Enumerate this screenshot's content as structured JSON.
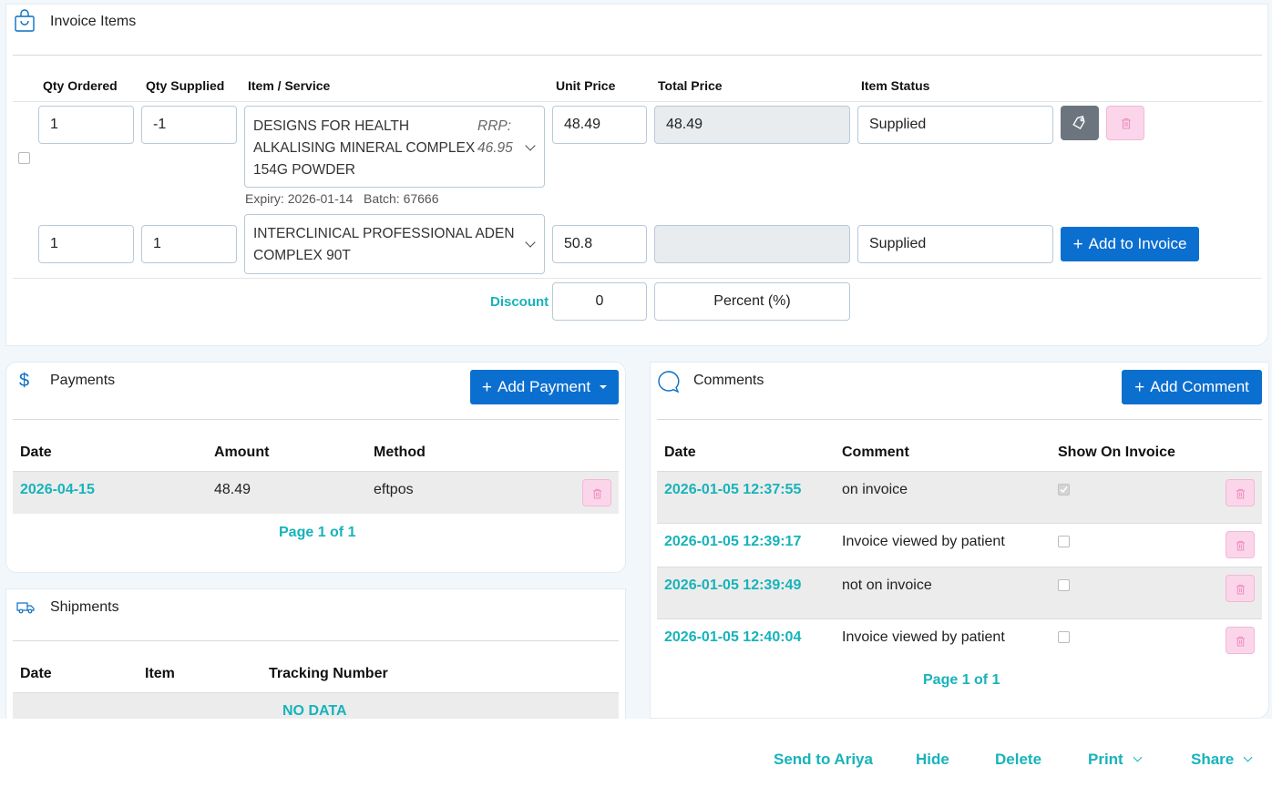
{
  "invoice_items": {
    "title": "Invoice Items",
    "headers": [
      "Qty Ordered",
      "Qty Supplied",
      "Item / Service",
      "Unit Price",
      "Total Price",
      "Item Status"
    ],
    "rows": [
      {
        "qty_ordered": "1",
        "qty_supplied": "-1",
        "item": "DESIGNS FOR HEALTH ALKALISING MINERAL COMPLEX 154G POWDER",
        "item_line1": "DESIGNS FOR HEALTH",
        "item_line2": "ALKALISING MINERAL COMPLEX",
        "item_line3": "154G POWDER",
        "rrp_label": "RRP:",
        "rrp_value": "46.95",
        "unit_price": "48.49",
        "total_price": "48.49",
        "status": "Supplied",
        "expiry_label": "Expiry:",
        "expiry": "2026-01-14",
        "batch_label": "Batch:",
        "batch": "67666"
      },
      {
        "qty_ordered": "1",
        "qty_supplied": "1",
        "item_line1": "INTERCLINICAL PROFESSIONAL ADEN",
        "item_line2": "COMPLEX 90T",
        "unit_price": "50.8",
        "total_price": "",
        "status": "Supplied"
      }
    ],
    "add_button": "Add to Invoice",
    "discount_label": "Discount",
    "discount_value": "0",
    "discount_type": "Percent (%)"
  },
  "payments": {
    "title": "Payments",
    "add_button": "Add Payment",
    "headers": [
      "Date",
      "Amount",
      "Method"
    ],
    "rows": [
      {
        "date": "2026-04-15",
        "amount": "48.49",
        "method": "eftpos"
      }
    ],
    "pagination": "Page 1 of 1"
  },
  "shipments": {
    "title": "Shipments",
    "headers": [
      "Date",
      "Item",
      "Tracking Number"
    ],
    "empty": "NO DATA"
  },
  "comments": {
    "title": "Comments",
    "add_button": "Add Comment",
    "headers": [
      "Date",
      "Comment",
      "Show On Invoice"
    ],
    "rows": [
      {
        "date": "2026-01-05 12:37:55",
        "comment": "on invoice",
        "show": true
      },
      {
        "date": "2026-01-05 12:39:17",
        "comment": "Invoice viewed by patient",
        "show": false
      },
      {
        "date": "2026-01-05 12:39:49",
        "comment": "not on invoice",
        "show": false
      },
      {
        "date": "2026-01-05 12:40:04",
        "comment": "Invoice viewed by patient",
        "show": false
      }
    ],
    "pagination": "Page 1 of 1"
  },
  "footer": {
    "send": "Send to Ariya",
    "hide": "Hide",
    "delete": "Delete",
    "print": "Print",
    "share": "Share"
  },
  "colors": {
    "primary": "#0b6fd0",
    "accent_teal": "#17b3ba",
    "danger_pink": "#fbd6ea",
    "grey_button": "#6c757d"
  }
}
